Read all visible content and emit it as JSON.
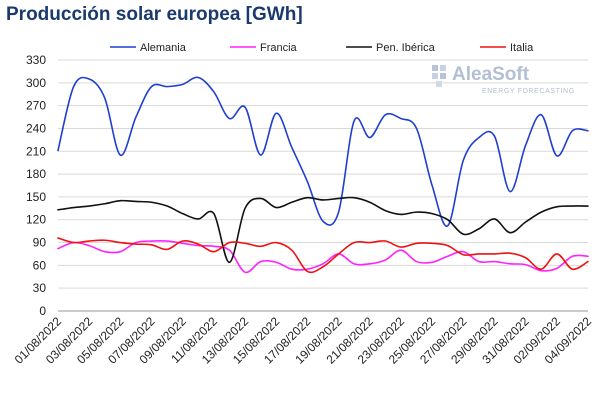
{
  "chart_title": "Producción solar europea [GWh]",
  "watermark": {
    "brand": "AleaSoft",
    "subtitle": "ENERGY FORECASTING"
  },
  "chart_data": {
    "type": "line",
    "title": "Producción solar europea [GWh]",
    "xlabel": "",
    "ylabel": "",
    "ylim": [
      0,
      330
    ],
    "yticks": [
      0,
      30,
      60,
      90,
      120,
      150,
      180,
      210,
      240,
      270,
      300,
      330
    ],
    "grid": "horizontal",
    "legend": "top",
    "x": [
      "01/08/2022",
      "02/08/2022",
      "03/08/2022",
      "04/08/2022",
      "05/08/2022",
      "06/08/2022",
      "07/08/2022",
      "08/08/2022",
      "09/08/2022",
      "10/08/2022",
      "11/08/2022",
      "12/08/2022",
      "13/08/2022",
      "14/08/2022",
      "15/08/2022",
      "16/08/2022",
      "17/08/2022",
      "18/08/2022",
      "19/08/2022",
      "20/08/2022",
      "21/08/2022",
      "22/08/2022",
      "23/08/2022",
      "24/08/2022",
      "25/08/2022",
      "26/08/2022",
      "27/08/2022",
      "28/08/2022",
      "29/08/2022",
      "30/08/2022",
      "31/08/2022",
      "01/09/2022",
      "02/09/2022",
      "03/09/2022",
      "04/09/2022"
    ],
    "xtick_labels": [
      "01/08/2022",
      "03/08/2022",
      "05/08/2022",
      "07/08/2022",
      "09/08/2022",
      "11/08/2022",
      "13/08/2022",
      "15/08/2022",
      "17/08/2022",
      "19/08/2022",
      "21/08/2022",
      "23/08/2022",
      "25/08/2022",
      "27/08/2022",
      "29/08/2022",
      "31/08/2022",
      "02/09/2022",
      "04/09/2022"
    ],
    "series": [
      {
        "name": "Alemania",
        "color": "#1f3fd0",
        "values": [
          211,
          295,
          305,
          280,
          205,
          255,
          295,
          295,
          298,
          307,
          288,
          253,
          268,
          205,
          260,
          215,
          170,
          118,
          130,
          250,
          228,
          258,
          253,
          240,
          165,
          112,
          198,
          228,
          230,
          157,
          218,
          258,
          204,
          237,
          237
        ]
      },
      {
        "name": "Francia",
        "color": "#ff22ff",
        "values": [
          82,
          90,
          86,
          78,
          78,
          90,
          92,
          92,
          89,
          86,
          85,
          80,
          51,
          65,
          64,
          55,
          55,
          62,
          75,
          62,
          62,
          67,
          80,
          65,
          64,
          72,
          78,
          65,
          65,
          62,
          61,
          53,
          56,
          72,
          72
        ]
      },
      {
        "name": "Pen. Ibérica",
        "color": "#111111",
        "values": [
          133,
          136,
          138,
          141,
          145,
          144,
          143,
          138,
          128,
          121,
          128,
          64,
          135,
          148,
          136,
          143,
          149,
          146,
          148,
          149,
          143,
          132,
          127,
          130,
          128,
          120,
          101,
          108,
          121,
          103,
          117,
          130,
          137,
          138,
          138
        ]
      },
      {
        "name": "Italia",
        "color": "#ee1111",
        "values": [
          96,
          90,
          92,
          93,
          90,
          88,
          87,
          81,
          92,
          88,
          78,
          90,
          89,
          85,
          90,
          80,
          52,
          58,
          75,
          90,
          90,
          92,
          84,
          89,
          89,
          86,
          74,
          75,
          75,
          76,
          70,
          55,
          75,
          55,
          65
        ]
      }
    ]
  }
}
